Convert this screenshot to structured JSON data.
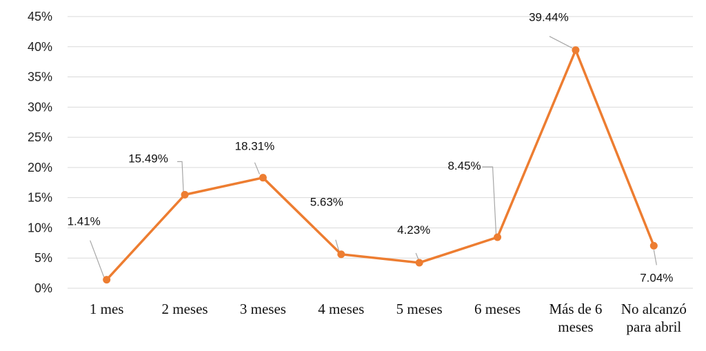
{
  "chart_data": {
    "type": "line",
    "categories": [
      [
        "1 mes"
      ],
      [
        "2 meses"
      ],
      [
        "3 meses"
      ],
      [
        "4 meses"
      ],
      [
        "5 meses"
      ],
      [
        "6 meses"
      ],
      [
        "Más de 6",
        "meses"
      ],
      [
        "No alcanzó",
        "para abril"
      ]
    ],
    "values": [
      1.41,
      15.49,
      18.31,
      5.63,
      4.23,
      8.45,
      39.44,
      7.04
    ],
    "data_labels": [
      "1.41%",
      "15.49%",
      "18.31%",
      "5.63%",
      "4.23%",
      "8.45%",
      "39.44%",
      "7.04%"
    ],
    "yticks": [
      "0%",
      "5%",
      "10%",
      "15%",
      "20%",
      "25%",
      "30%",
      "35%",
      "40%",
      "45%"
    ],
    "ylim": [
      0,
      45
    ],
    "title": "",
    "xlabel": "",
    "ylabel": "",
    "grid": true,
    "legend": "none",
    "colors": {
      "series": "#ED7D31",
      "grid": "#D9D9D9",
      "leader": "#A6A6A6"
    }
  }
}
